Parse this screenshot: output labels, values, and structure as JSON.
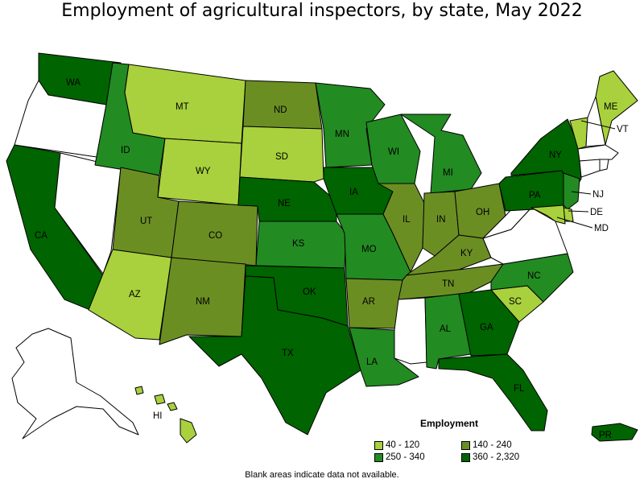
{
  "title": "Employment of agricultural inspectors, by state, May 2022",
  "colors": {
    "c1": "#a8d13d",
    "c2": "#6b8e23",
    "c3": "#228b22",
    "c4": "#006400",
    "nodata": "#ffffff",
    "border": "#000000"
  },
  "states": [
    {
      "abbr": "WA",
      "bin": "c4"
    },
    {
      "abbr": "OR",
      "bin": "nodata"
    },
    {
      "abbr": "CA",
      "bin": "c4"
    },
    {
      "abbr": "NV",
      "bin": "nodata"
    },
    {
      "abbr": "ID",
      "bin": "c3"
    },
    {
      "abbr": "MT",
      "bin": "c1"
    },
    {
      "abbr": "WY",
      "bin": "c1"
    },
    {
      "abbr": "UT",
      "bin": "c2"
    },
    {
      "abbr": "AZ",
      "bin": "c1"
    },
    {
      "abbr": "CO",
      "bin": "c2"
    },
    {
      "abbr": "NM",
      "bin": "c2"
    },
    {
      "abbr": "ND",
      "bin": "c2"
    },
    {
      "abbr": "SD",
      "bin": "c1"
    },
    {
      "abbr": "NE",
      "bin": "c4"
    },
    {
      "abbr": "KS",
      "bin": "c3"
    },
    {
      "abbr": "OK",
      "bin": "c4"
    },
    {
      "abbr": "TX",
      "bin": "c4"
    },
    {
      "abbr": "MN",
      "bin": "c3"
    },
    {
      "abbr": "IA",
      "bin": "c4"
    },
    {
      "abbr": "MO",
      "bin": "c3"
    },
    {
      "abbr": "AR",
      "bin": "c2"
    },
    {
      "abbr": "LA",
      "bin": "c3"
    },
    {
      "abbr": "WI",
      "bin": "c3"
    },
    {
      "abbr": "IL",
      "bin": "c2"
    },
    {
      "abbr": "MI",
      "bin": "c3"
    },
    {
      "abbr": "IN",
      "bin": "c2"
    },
    {
      "abbr": "OH",
      "bin": "c2"
    },
    {
      "abbr": "KY",
      "bin": "c2"
    },
    {
      "abbr": "TN",
      "bin": "c2"
    },
    {
      "abbr": "MS",
      "bin": "nodata"
    },
    {
      "abbr": "AL",
      "bin": "c3"
    },
    {
      "abbr": "GA",
      "bin": "c4"
    },
    {
      "abbr": "FL",
      "bin": "c4"
    },
    {
      "abbr": "SC",
      "bin": "c1"
    },
    {
      "abbr": "NC",
      "bin": "c3"
    },
    {
      "abbr": "VA",
      "bin": "nodata"
    },
    {
      "abbr": "WV",
      "bin": "nodata"
    },
    {
      "abbr": "PA",
      "bin": "c4"
    },
    {
      "abbr": "NY",
      "bin": "c4"
    },
    {
      "abbr": "NJ",
      "bin": "c3"
    },
    {
      "abbr": "DE",
      "bin": "c1"
    },
    {
      "abbr": "MD",
      "bin": "c1"
    },
    {
      "abbr": "VT",
      "bin": "c1"
    },
    {
      "abbr": "NH",
      "bin": "nodata"
    },
    {
      "abbr": "ME",
      "bin": "c1"
    },
    {
      "abbr": "MA",
      "bin": "nodata"
    },
    {
      "abbr": "CT",
      "bin": "nodata"
    },
    {
      "abbr": "RI",
      "bin": "nodata"
    },
    {
      "abbr": "AK",
      "bin": "nodata"
    },
    {
      "abbr": "HI",
      "bin": "c1"
    },
    {
      "abbr": "PR",
      "bin": "c4"
    }
  ],
  "legend": {
    "title": "Employment",
    "items": [
      {
        "label": "40 - 120",
        "color": "c1"
      },
      {
        "label": "140 - 240",
        "color": "c2"
      },
      {
        "label": "250 - 340",
        "color": "c3"
      },
      {
        "label": "360 - 2,320",
        "color": "c4"
      }
    ]
  },
  "footnote": "Blank areas indicate data not available."
}
